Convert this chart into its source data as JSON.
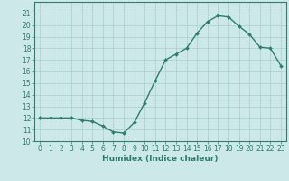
{
  "x": [
    0,
    1,
    2,
    3,
    4,
    5,
    6,
    7,
    8,
    9,
    10,
    11,
    12,
    13,
    14,
    15,
    16,
    17,
    18,
    19,
    20,
    21,
    22,
    23
  ],
  "y": [
    12,
    12,
    12,
    12,
    11.8,
    11.7,
    11.3,
    10.8,
    10.7,
    11.6,
    13.3,
    15.2,
    17.0,
    17.5,
    18.0,
    19.3,
    20.3,
    20.8,
    20.7,
    19.9,
    19.2,
    18.1,
    18.0,
    16.5
  ],
  "line_color": "#2e7d6e",
  "marker": "D",
  "marker_size": 2.0,
  "bg_color": "#cce8e8",
  "grid_color": "#aacece",
  "xlabel": "Humidex (Indice chaleur)",
  "xlim": [
    -0.5,
    23.5
  ],
  "ylim": [
    10,
    22
  ],
  "yticks": [
    10,
    11,
    12,
    13,
    14,
    15,
    16,
    17,
    18,
    19,
    20,
    21
  ],
  "xticks": [
    0,
    1,
    2,
    3,
    4,
    5,
    6,
    7,
    8,
    9,
    10,
    11,
    12,
    13,
    14,
    15,
    16,
    17,
    18,
    19,
    20,
    21,
    22,
    23
  ],
  "tick_color": "#2e7d6e",
  "spine_color": "#2e7d6e",
  "font_color": "#2e7d6e",
  "xlabel_fontsize": 6.5,
  "tick_fontsize": 5.5,
  "linewidth": 1.0
}
